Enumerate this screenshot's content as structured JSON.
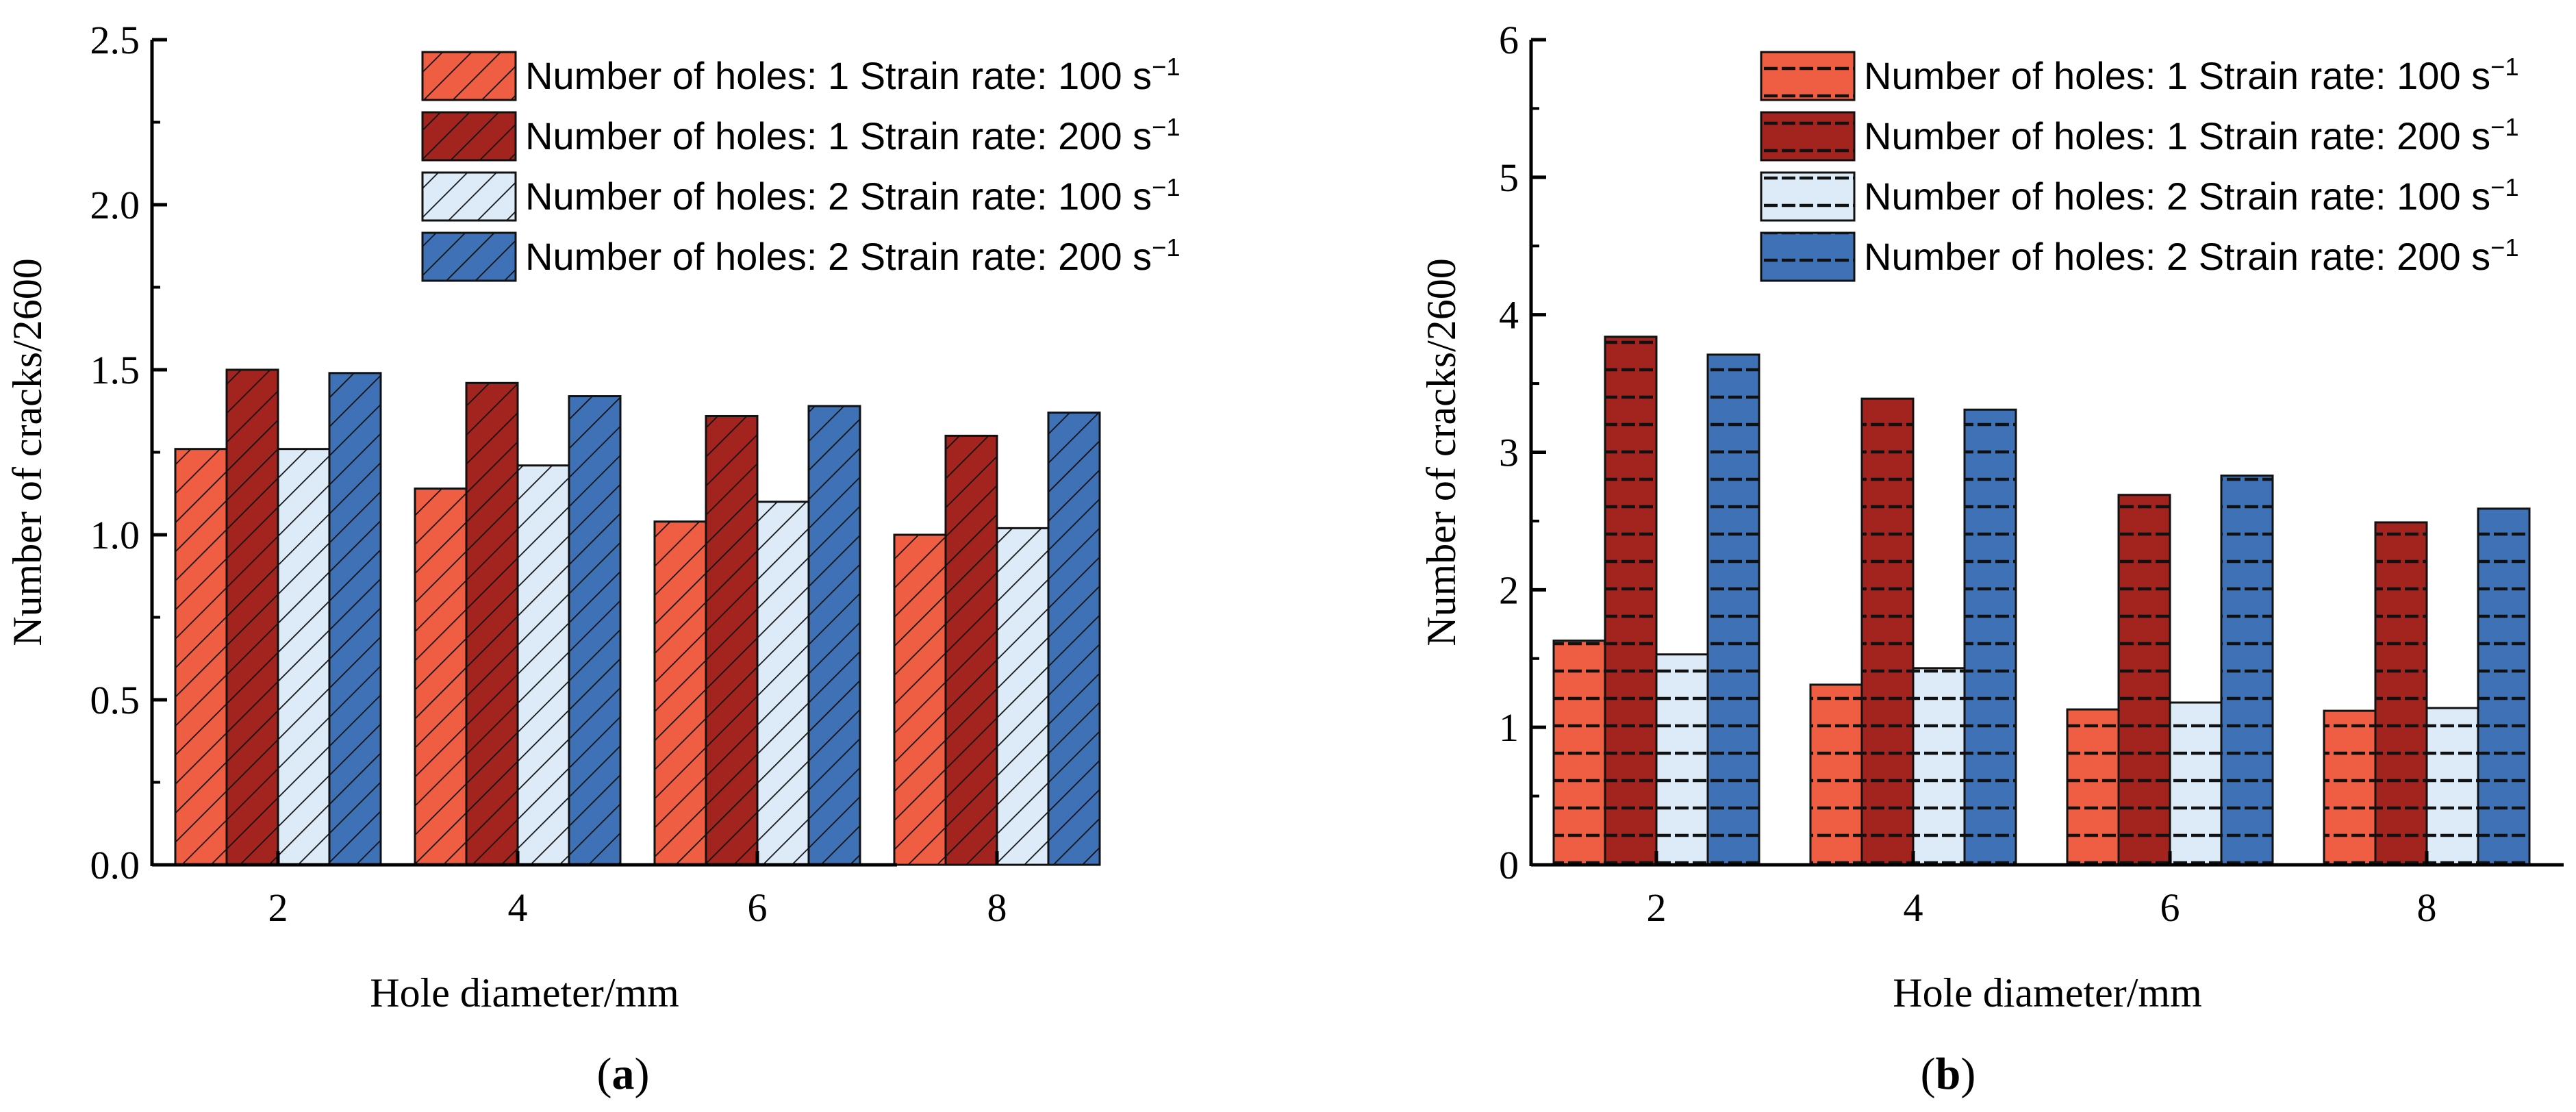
{
  "chart_data": [
    {
      "type": "bar",
      "panel_label": "a",
      "pattern": "diagonal",
      "xlabel": "Hole diameter/mm",
      "ylabel": "Number of cracks/2600",
      "categories": [
        "2",
        "4",
        "6",
        "8"
      ],
      "ylim": [
        0,
        2.5
      ],
      "yticks": [
        "0.0",
        "0.5",
        "1.0",
        "1.5",
        "2.0",
        "2.5"
      ],
      "legend_position": "top-right",
      "series": [
        {
          "name": "Number of holes: 1  Strain rate: 100 s",
          "color": "#ef5d43",
          "values": [
            1.26,
            1.14,
            1.04,
            1.0
          ]
        },
        {
          "name": "Number of holes: 1  Strain rate: 200 s",
          "color": "#a3231f",
          "values": [
            1.5,
            1.46,
            1.36,
            1.3
          ]
        },
        {
          "name": "Number of holes: 2  Strain rate: 100 s",
          "color": "#dcebf7",
          "values": [
            1.26,
            1.21,
            1.1,
            1.02
          ]
        },
        {
          "name": "Number of holes: 2  Strain rate: 200 s",
          "color": "#3e71b6",
          "values": [
            1.49,
            1.42,
            1.39,
            1.37
          ]
        }
      ]
    },
    {
      "type": "bar",
      "panel_label": "b",
      "pattern": "dashes",
      "xlabel": "Hole diameter/mm",
      "ylabel": "Number of cracks/2600",
      "categories": [
        "2",
        "4",
        "6",
        "8"
      ],
      "ylim": [
        0,
        6
      ],
      "yticks": [
        "0",
        "1",
        "2",
        "3",
        "4",
        "5",
        "6"
      ],
      "legend_position": "top-right",
      "series": [
        {
          "name": "Number of holes: 1  Strain rate: 100 s",
          "color": "#ef5d43",
          "values": [
            1.63,
            1.31,
            1.13,
            1.12
          ]
        },
        {
          "name": "Number of holes: 1  Strain rate: 200 s",
          "color": "#a3231f",
          "values": [
            3.84,
            3.39,
            2.69,
            2.49
          ]
        },
        {
          "name": "Number of holes: 2  Strain rate: 100 s",
          "color": "#dcebf7",
          "values": [
            1.53,
            1.43,
            1.18,
            1.14
          ]
        },
        {
          "name": "Number of holes: 2  Strain rate: 200 s",
          "color": "#3e71b6",
          "values": [
            3.71,
            3.31,
            2.83,
            2.59
          ]
        }
      ]
    }
  ],
  "unit_exponent": "−1"
}
